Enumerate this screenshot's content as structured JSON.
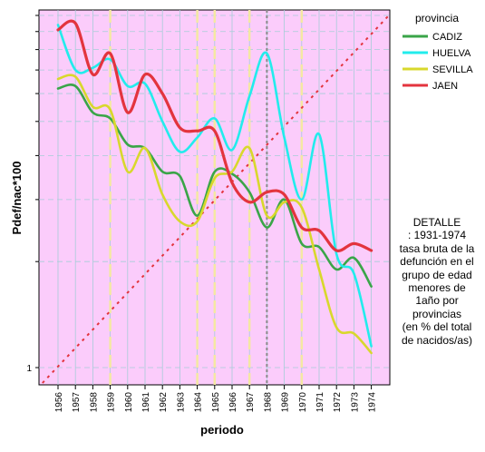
{
  "chart_data": {
    "type": "line",
    "title": "",
    "xlabel": "periodo",
    "ylabel": "Pdef/nac*100",
    "y_tick_labels": [
      "1"
    ],
    "x": [
      "1956",
      "1957",
      "1958",
      "1959",
      "1960",
      "1961",
      "1962",
      "1963",
      "1964",
      "1965",
      "1966",
      "1967",
      "1968",
      "1969",
      "1970",
      "1971",
      "1972",
      "1973",
      "1974"
    ],
    "series": [
      {
        "name": "CADIZ",
        "color": "#3aa548",
        "values": [
          6.2,
          6.3,
          5.3,
          5.1,
          4.3,
          4.2,
          3.6,
          3.5,
          2.7,
          3.6,
          3.55,
          3.15,
          2.5,
          3.0,
          2.25,
          2.2,
          1.9,
          2.05,
          1.7
        ]
      },
      {
        "name": "HUELVA",
        "color": "#22ecec",
        "values": [
          9.4,
          7.0,
          7.1,
          7.5,
          6.3,
          6.4,
          5.0,
          4.1,
          4.5,
          5.1,
          4.15,
          5.9,
          7.8,
          4.5,
          3.0,
          4.6,
          2.1,
          1.85,
          1.15
        ]
      },
      {
        "name": "SEVILLA",
        "color": "#d8d82c",
        "values": [
          6.6,
          6.7,
          5.5,
          5.4,
          3.6,
          4.2,
          3.1,
          2.6,
          2.6,
          3.45,
          3.6,
          4.2,
          2.7,
          2.95,
          2.85,
          1.9,
          1.3,
          1.25,
          1.1
        ]
      },
      {
        "name": "JAEN",
        "color": "#e3343e",
        "values": [
          9.1,
          9.5,
          6.8,
          7.8,
          5.3,
          6.8,
          6.0,
          4.8,
          4.7,
          4.7,
          3.35,
          2.95,
          3.15,
          3.1,
          2.5,
          2.45,
          2.15,
          2.25,
          2.15
        ]
      }
    ],
    "reference_line": {
      "from_year": "1955",
      "to_year": "1975"
    },
    "vertical_markers": {
      "dashed_yellow_years": [
        "1959",
        "1964",
        "1965",
        "1967",
        "1970"
      ],
      "dotted_gray_year": "1968"
    },
    "legend": {
      "title": "provincia",
      "position": "right"
    },
    "grid": true,
    "colors": {
      "plot_background": "#fbccfb",
      "grid": "#a6cdd8",
      "reference": "#e3343e",
      "yellow_marker": "#f4e8a2",
      "gray_marker": "#8a8a8a"
    }
  },
  "note": {
    "lines": [
      "DETALLE",
      ": 1931-1974",
      "tasa bruta de la",
      "defunción en el",
      "grupo de edad",
      "menores de",
      "1año        por",
      "provincias",
      "(en % del total",
      "de nacidos/as)"
    ]
  }
}
